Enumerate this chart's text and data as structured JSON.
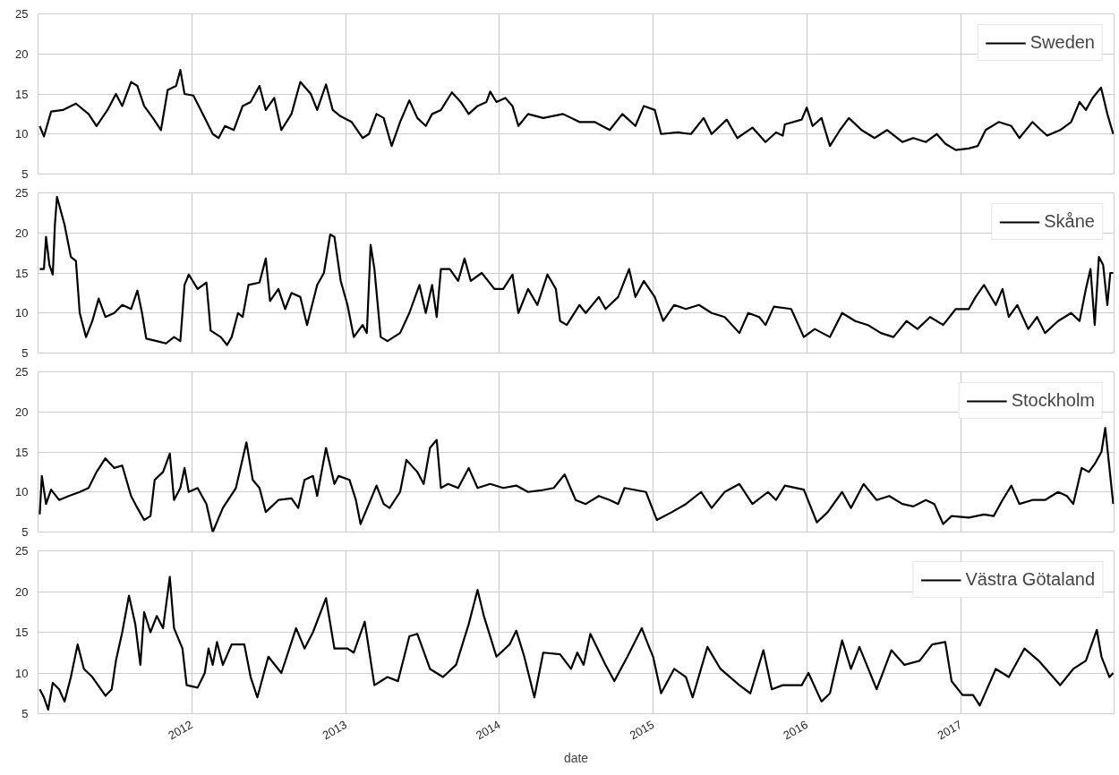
{
  "chart_data": [
    {
      "type": "line",
      "xlim": [
        "2011-01-01",
        "2017-12-31"
      ],
      "xticks": [
        {
          "value": "2012-01-01",
          "label": null
        },
        {
          "value": "2013-01-01",
          "label": null
        },
        {
          "value": "2014-01-01",
          "label": null
        },
        {
          "value": "2015-01-01",
          "label": null
        },
        {
          "value": "2016-01-01",
          "label": null
        },
        {
          "value": "2017-01-01",
          "label": null
        }
      ],
      "ylim": [
        5,
        25
      ],
      "yticks": [
        5,
        10,
        15,
        20,
        25
      ],
      "grid": true,
      "legend": "top right",
      "tick_labels": "y",
      "series": [
        {
          "name": "Sweden",
          "color": "#000000",
          "x": [
            "2011-01-05",
            "2011-01-15",
            "2011-02-01",
            "2011-03-01",
            "2011-04-01",
            "2011-05-01",
            "2011-05-20",
            "2011-06-15",
            "2011-07-05",
            "2011-07-20",
            "2011-08-10",
            "2011-08-25",
            "2011-09-10",
            "2011-10-01",
            "2011-10-20",
            "2011-11-05",
            "2011-11-25",
            "2011-12-05",
            "2011-12-15",
            "2012-01-05",
            "2012-02-01",
            "2012-02-20",
            "2012-03-05",
            "2012-03-20",
            "2012-04-10",
            "2012-05-01",
            "2012-05-20",
            "2012-06-10",
            "2012-06-25",
            "2012-07-15",
            "2012-08-01",
            "2012-08-25",
            "2012-09-15",
            "2012-10-10",
            "2012-10-25",
            "2012-11-15",
            "2012-12-01",
            "2012-12-20",
            "2013-01-15",
            "2013-02-10",
            "2013-02-25",
            "2013-03-15",
            "2013-04-01",
            "2013-04-20",
            "2013-05-10",
            "2013-06-01",
            "2013-06-20",
            "2013-07-10",
            "2013-07-25",
            "2013-08-15",
            "2013-09-10",
            "2013-10-01",
            "2013-10-20",
            "2013-11-10",
            "2013-12-01",
            "2013-12-10",
            "2013-12-25",
            "2014-01-15",
            "2014-02-01",
            "2014-02-15",
            "2014-03-10",
            "2014-04-15",
            "2014-06-01",
            "2014-07-10",
            "2014-08-15",
            "2014-09-20",
            "2014-10-20",
            "2014-11-20",
            "2014-12-10",
            "2015-01-05",
            "2015-01-20",
            "2015-03-01",
            "2015-04-01",
            "2015-05-01",
            "2015-05-20",
            "2015-06-25",
            "2015-07-20",
            "2015-08-25",
            "2015-09-25",
            "2015-10-20",
            "2015-11-05",
            "2015-11-10",
            "2015-12-20",
            "2016-01-01",
            "2016-01-15",
            "2016-02-05",
            "2016-02-25",
            "2016-03-20",
            "2016-04-10",
            "2016-05-10",
            "2016-06-10",
            "2016-07-10",
            "2016-08-15",
            "2016-09-10",
            "2016-10-10",
            "2016-11-05",
            "2016-11-25",
            "2016-12-20",
            "2017-01-20",
            "2017-02-10",
            "2017-03-01",
            "2017-04-01",
            "2017-05-01",
            "2017-05-20",
            "2017-06-20",
            "2017-07-10",
            "2017-07-25",
            "2017-08-25",
            "2017-09-20",
            "2017-10-10",
            "2017-10-25",
            "2017-11-10",
            "2017-11-30",
            "2017-12-15",
            "2017-12-29"
          ],
          "values": [
            11,
            9.7,
            12.8,
            13,
            13.8,
            12.5,
            11,
            13,
            15,
            13.5,
            16.5,
            16,
            13.5,
            12,
            10.5,
            15.5,
            16,
            18,
            15,
            14.8,
            12,
            10,
            9.5,
            11,
            10.5,
            13.5,
            14,
            16,
            13,
            14.5,
            10.5,
            12.5,
            16.5,
            15,
            13,
            16.2,
            13,
            12.2,
            11.5,
            9.5,
            10,
            12.5,
            12,
            8.5,
            11.5,
            14.2,
            12,
            11,
            12.5,
            13,
            15.2,
            14,
            12.5,
            13.5,
            14,
            15.3,
            14,
            14.5,
            13.5,
            11,
            12.5,
            12,
            12.5,
            11.5,
            11.5,
            10.5,
            12.5,
            11,
            13.5,
            13,
            10,
            10.2,
            10,
            12,
            10,
            11.8,
            9.5,
            10.8,
            9,
            10.2,
            9.8,
            11.2,
            11.8,
            13.3,
            11,
            12,
            8.5,
            10.5,
            12,
            10.5,
            9.5,
            10.5,
            9,
            9.5,
            9,
            10,
            8.8,
            8,
            8.2,
            8.5,
            10.5,
            11.5,
            11,
            9.5,
            11.5,
            10.5,
            9.8,
            10.5,
            11.5,
            14,
            13,
            14.5,
            15.8,
            12.5,
            10
          ]
        }
      ]
    },
    {
      "type": "line",
      "xlim": [
        "2011-01-01",
        "2017-12-31"
      ],
      "xticks": [
        {
          "value": "2012-01-01",
          "label": null
        },
        {
          "value": "2013-01-01",
          "label": null
        },
        {
          "value": "2014-01-01",
          "label": null
        },
        {
          "value": "2015-01-01",
          "label": null
        },
        {
          "value": "2016-01-01",
          "label": null
        },
        {
          "value": "2017-01-01",
          "label": null
        }
      ],
      "ylim": [
        5,
        25
      ],
      "yticks": [
        5,
        10,
        15,
        20,
        25
      ],
      "grid": true,
      "legend": "top right",
      "tick_labels": "y",
      "series": [
        {
          "name": "Skåne",
          "color": "#000000",
          "x": [
            "2011-01-05",
            "2011-01-15",
            "2011-01-20",
            "2011-01-28",
            "2011-02-05",
            "2011-02-10",
            "2011-02-15",
            "2011-03-05",
            "2011-03-20",
            "2011-04-01",
            "2011-04-10",
            "2011-04-25",
            "2011-05-10",
            "2011-05-25",
            "2011-06-10",
            "2011-07-01",
            "2011-07-20",
            "2011-08-10",
            "2011-08-25",
            "2011-09-05",
            "2011-09-15",
            "2011-10-10",
            "2011-11-01",
            "2011-11-20",
            "2011-12-05",
            "2011-12-15",
            "2011-12-25",
            "2012-01-15",
            "2012-02-05",
            "2012-02-15",
            "2012-03-10",
            "2012-03-25",
            "2012-04-05",
            "2012-04-20",
            "2012-05-01",
            "2012-05-15",
            "2012-06-10",
            "2012-06-25",
            "2012-07-05",
            "2012-07-25",
            "2012-08-10",
            "2012-08-25",
            "2012-09-15",
            "2012-10-01",
            "2012-10-25",
            "2012-11-10",
            "2012-11-25",
            "2012-12-05",
            "2012-12-20",
            "2013-01-05",
            "2013-01-20",
            "2013-02-10",
            "2013-02-20",
            "2013-03-01",
            "2013-03-10",
            "2013-03-25",
            "2013-04-10",
            "2013-05-10",
            "2013-06-01",
            "2013-06-25",
            "2013-07-10",
            "2013-07-25",
            "2013-08-05",
            "2013-08-15",
            "2013-09-05",
            "2013-09-25",
            "2013-10-10",
            "2013-10-25",
            "2013-11-20",
            "2013-12-20",
            "2014-01-10",
            "2014-02-01",
            "2014-02-15",
            "2014-03-10",
            "2014-04-01",
            "2014-04-25",
            "2014-05-15",
            "2014-05-25",
            "2014-06-10",
            "2014-07-10",
            "2014-07-25",
            "2014-08-25",
            "2014-09-10",
            "2014-10-10",
            "2014-11-05",
            "2014-11-20",
            "2014-12-10",
            "2015-01-05",
            "2015-01-25",
            "2015-02-20",
            "2015-03-20",
            "2015-04-20",
            "2015-05-20",
            "2015-06-20",
            "2015-07-25",
            "2015-08-15",
            "2015-09-10",
            "2015-09-25",
            "2015-10-15",
            "2015-11-25",
            "2015-12-25",
            "2016-01-20",
            "2016-02-25",
            "2016-03-25",
            "2016-04-25",
            "2016-05-25",
            "2016-06-25",
            "2016-07-25",
            "2016-08-25",
            "2016-09-20",
            "2016-10-20",
            "2016-11-20",
            "2016-12-20",
            "2017-01-20",
            "2017-02-05",
            "2017-02-25",
            "2017-03-25",
            "2017-04-10",
            "2017-04-25",
            "2017-05-15",
            "2017-06-10",
            "2017-07-01",
            "2017-07-20",
            "2017-08-20",
            "2017-09-20",
            "2017-10-10",
            "2017-10-25",
            "2017-11-05",
            "2017-11-15",
            "2017-11-25",
            "2017-12-05",
            "2017-12-15",
            "2017-12-22",
            "2017-12-29"
          ],
          "values": [
            15.5,
            15.5,
            19.5,
            16,
            14.8,
            21,
            24.5,
            21,
            17,
            16.5,
            10,
            7,
            9,
            11.8,
            9.5,
            10,
            11,
            10.5,
            12.8,
            10,
            6.8,
            6.5,
            6.2,
            7,
            6.5,
            13.5,
            14.8,
            13,
            13.8,
            7.8,
            7,
            6,
            7,
            10,
            9.5,
            13.5,
            13.8,
            16.8,
            11.5,
            13,
            10.5,
            12.5,
            12,
            8.5,
            13.5,
            15,
            19.8,
            19.5,
            14,
            11,
            7,
            8.5,
            7.5,
            18.5,
            15.5,
            7,
            6.5,
            7.5,
            10,
            13.5,
            10,
            13.5,
            9.5,
            15.5,
            15.5,
            14,
            16.8,
            14,
            15,
            13,
            13,
            14.8,
            10,
            13,
            11,
            14.8,
            13,
            9,
            8.5,
            11,
            10,
            12,
            10.5,
            12,
            15.5,
            12,
            14,
            12,
            9,
            11,
            10.5,
            11,
            10,
            9.5,
            7.5,
            10,
            9.5,
            8.5,
            10.8,
            10.5,
            7,
            8,
            7,
            10,
            9,
            8.5,
            7.5,
            7,
            9,
            8,
            9.5,
            8.5,
            10.5,
            10.5,
            12,
            13.5,
            11,
            13,
            9.5,
            11,
            8,
            9.5,
            7.5,
            9,
            10,
            9,
            13,
            15.5,
            8.5,
            17,
            16,
            11,
            15,
            15
          ]
        }
      ]
    },
    {
      "type": "line",
      "xlim": [
        "2011-01-01",
        "2017-12-31"
      ],
      "xticks": [
        {
          "value": "2012-01-01",
          "label": null
        },
        {
          "value": "2013-01-01",
          "label": null
        },
        {
          "value": "2014-01-01",
          "label": null
        },
        {
          "value": "2015-01-01",
          "label": null
        },
        {
          "value": "2016-01-01",
          "label": null
        },
        {
          "value": "2017-01-01",
          "label": null
        }
      ],
      "ylim": [
        5,
        25
      ],
      "yticks": [
        5,
        10,
        15,
        20,
        25
      ],
      "grid": true,
      "legend": "top right",
      "tick_labels": "y",
      "series": [
        {
          "name": "Stockholm",
          "color": "#000000",
          "x": [
            "2011-01-05",
            "2011-01-10",
            "2011-01-20",
            "2011-02-01",
            "2011-02-20",
            "2011-03-15",
            "2011-04-10",
            "2011-05-01",
            "2011-05-20",
            "2011-06-10",
            "2011-07-01",
            "2011-07-20",
            "2011-08-10",
            "2011-08-25",
            "2011-09-10",
            "2011-09-25",
            "2011-10-05",
            "2011-10-25",
            "2011-11-10",
            "2011-11-20",
            "2011-12-05",
            "2011-12-15",
            "2011-12-25",
            "2012-01-15",
            "2012-02-05",
            "2012-02-20",
            "2012-03-15",
            "2012-04-15",
            "2012-05-10",
            "2012-05-25",
            "2012-06-10",
            "2012-06-25",
            "2012-07-25",
            "2012-08-25",
            "2012-09-10",
            "2012-09-25",
            "2012-10-15",
            "2012-10-25",
            "2012-11-15",
            "2012-12-05",
            "2012-12-15",
            "2013-01-10",
            "2013-01-25",
            "2013-02-05",
            "2013-02-25",
            "2013-03-15",
            "2013-04-01",
            "2013-04-15",
            "2013-05-10",
            "2013-05-25",
            "2013-06-20",
            "2013-07-05",
            "2013-07-20",
            "2013-08-05",
            "2013-08-15",
            "2013-09-01",
            "2013-09-25",
            "2013-10-20",
            "2013-11-10",
            "2013-12-10",
            "2014-01-10",
            "2014-02-10",
            "2014-03-10",
            "2014-04-10",
            "2014-05-10",
            "2014-06-05",
            "2014-07-01",
            "2014-07-25",
            "2014-08-25",
            "2014-09-20",
            "2014-10-10",
            "2014-10-25",
            "2014-12-15",
            "2015-01-10",
            "2015-02-15",
            "2015-03-20",
            "2015-04-25",
            "2015-05-20",
            "2015-06-20",
            "2015-07-25",
            "2015-08-25",
            "2015-10-01",
            "2015-10-20",
            "2015-11-10",
            "2015-12-25",
            "2016-01-25",
            "2016-02-20",
            "2016-03-25",
            "2016-04-15",
            "2016-05-15",
            "2016-06-15",
            "2016-07-15",
            "2016-08-15",
            "2016-09-10",
            "2016-10-10",
            "2016-10-30",
            "2016-11-20",
            "2016-12-10",
            "2017-01-20",
            "2017-02-25",
            "2017-03-20",
            "2017-04-10",
            "2017-05-01",
            "2017-05-20",
            "2017-06-20",
            "2017-07-20",
            "2017-08-20",
            "2017-09-10",
            "2017-09-25",
            "2017-10-15",
            "2017-11-01",
            "2017-11-15",
            "2017-12-01",
            "2017-12-10",
            "2017-12-20",
            "2017-12-29"
          ],
          "values": [
            7.2,
            12,
            8.5,
            10.3,
            9,
            9.5,
            10,
            10.5,
            12.5,
            14.2,
            13,
            13.3,
            9.5,
            8,
            6.5,
            7,
            11.5,
            12.5,
            14.8,
            9,
            10.5,
            13,
            10,
            10.5,
            8.5,
            5,
            8,
            10.5,
            16.2,
            11.5,
            10.5,
            7.5,
            9,
            9.2,
            8,
            11.5,
            12,
            9.5,
            15.5,
            11,
            12,
            11.5,
            9,
            6,
            8.5,
            10.8,
            8.5,
            8,
            10,
            14,
            12.5,
            11,
            15.5,
            16.5,
            10.5,
            11,
            10.5,
            13,
            10.5,
            11,
            10.5,
            10.8,
            10,
            10.2,
            10.5,
            12.2,
            9,
            8.5,
            9.5,
            9,
            8.5,
            10.5,
            10,
            6.5,
            7.5,
            8.5,
            10,
            8,
            10,
            11,
            8.5,
            10,
            9,
            10.8,
            10.3,
            6.2,
            7.5,
            10,
            8,
            11,
            9,
            9.5,
            8.5,
            8.2,
            9,
            8.5,
            6,
            7,
            6.8,
            7.2,
            7,
            9,
            10.8,
            8.5,
            9,
            9,
            10,
            9.5,
            8.5,
            13,
            12.5,
            13.5,
            15,
            18,
            13,
            8.5
          ]
        }
      ]
    },
    {
      "type": "line",
      "xlim": [
        "2011-01-01",
        "2017-12-31"
      ],
      "xticks": [
        {
          "value": "2012-01-01",
          "label": "2012"
        },
        {
          "value": "2013-01-01",
          "label": "2013"
        },
        {
          "value": "2014-01-01",
          "label": "2014"
        },
        {
          "value": "2015-01-01",
          "label": "2015"
        },
        {
          "value": "2016-01-01",
          "label": "2016"
        },
        {
          "value": "2017-01-01",
          "label": "2017"
        }
      ],
      "ylim": [
        5,
        25
      ],
      "yticks": [
        5,
        10,
        15,
        20,
        25
      ],
      "grid": true,
      "legend": "top right",
      "xlabel": "date",
      "series": [
        {
          "name": "Västra Götaland",
          "color": "#000000",
          "x": [
            "2011-01-05",
            "2011-01-15",
            "2011-01-25",
            "2011-02-05",
            "2011-02-20",
            "2011-03-05",
            "2011-03-20",
            "2011-04-05",
            "2011-04-20",
            "2011-05-10",
            "2011-06-10",
            "2011-06-25",
            "2011-07-05",
            "2011-07-20",
            "2011-08-05",
            "2011-08-20",
            "2011-09-01",
            "2011-09-10",
            "2011-09-25",
            "2011-10-10",
            "2011-10-25",
            "2011-11-10",
            "2011-11-20",
            "2011-12-10",
            "2011-12-20",
            "2012-01-15",
            "2012-02-01",
            "2012-02-10",
            "2012-02-20",
            "2012-03-01",
            "2012-03-15",
            "2012-04-05",
            "2012-05-05",
            "2012-05-20",
            "2012-06-05",
            "2012-07-01",
            "2012-08-01",
            "2012-09-05",
            "2012-09-25",
            "2012-10-15",
            "2012-11-15",
            "2012-12-05",
            "2013-01-05",
            "2013-01-20",
            "2013-02-15",
            "2013-03-10",
            "2013-04-10",
            "2013-05-05",
            "2013-06-01",
            "2013-06-20",
            "2013-07-20",
            "2013-08-20",
            "2013-09-20",
            "2013-10-20",
            "2013-11-10",
            "2013-11-25",
            "2013-12-25",
            "2014-01-25",
            "2014-02-10",
            "2014-03-01",
            "2014-03-25",
            "2014-04-15",
            "2014-05-25",
            "2014-06-20",
            "2014-07-05",
            "2014-07-20",
            "2014-08-05",
            "2014-09-10",
            "2014-10-01",
            "2014-11-01",
            "2014-12-05",
            "2014-12-20",
            "2015-01-01",
            "2015-01-20",
            "2015-02-20",
            "2015-03-20",
            "2015-04-05",
            "2015-05-10",
            "2015-06-10",
            "2015-07-25",
            "2015-08-20",
            "2015-09-20",
            "2015-10-10",
            "2015-11-05",
            "2015-12-20",
            "2016-01-05",
            "2016-02-05",
            "2016-02-25",
            "2016-03-25",
            "2016-04-15",
            "2016-05-05",
            "2016-06-15",
            "2016-07-20",
            "2016-08-20",
            "2016-09-25",
            "2016-10-25",
            "2016-11-25",
            "2016-12-10",
            "2017-01-05",
            "2017-01-30",
            "2017-02-15",
            "2017-03-25",
            "2017-04-25",
            "2017-06-01",
            "2017-07-05",
            "2017-08-25",
            "2017-09-25",
            "2017-10-25",
            "2017-11-20",
            "2017-12-01",
            "2017-12-20",
            "2017-12-29"
          ],
          "values": [
            8,
            7,
            5.5,
            8.8,
            8,
            6.5,
            9.5,
            13.5,
            10.5,
            9.5,
            7.2,
            8,
            11.5,
            15,
            19.5,
            16,
            11,
            17.5,
            15,
            17,
            15.5,
            21.8,
            15.5,
            13,
            8.5,
            8.2,
            10,
            13,
            11,
            13.8,
            11,
            13.5,
            13.5,
            9.5,
            7,
            12,
            10,
            15.5,
            13,
            15,
            19.2,
            13,
            13,
            12.5,
            16.3,
            8.5,
            9.5,
            9,
            14.5,
            14.8,
            10.5,
            9.5,
            11,
            16,
            20.2,
            17,
            12,
            13.5,
            15.2,
            12,
            7,
            12.5,
            12.3,
            10.5,
            12.5,
            11,
            14.8,
            11,
            9,
            12,
            15.5,
            13.5,
            12,
            7.5,
            10.5,
            9.5,
            7,
            13.2,
            10.5,
            8.5,
            7.5,
            12.8,
            8,
            8.5,
            8.5,
            10,
            6.5,
            7.5,
            14,
            10.5,
            13.2,
            8,
            12.8,
            11,
            11.5,
            13.5,
            13.8,
            9,
            7.3,
            7.3,
            6,
            10.5,
            9.5,
            13,
            11.5,
            8.5,
            10.5,
            11.5,
            15.3,
            12,
            9.5,
            10
          ]
        }
      ]
    }
  ]
}
